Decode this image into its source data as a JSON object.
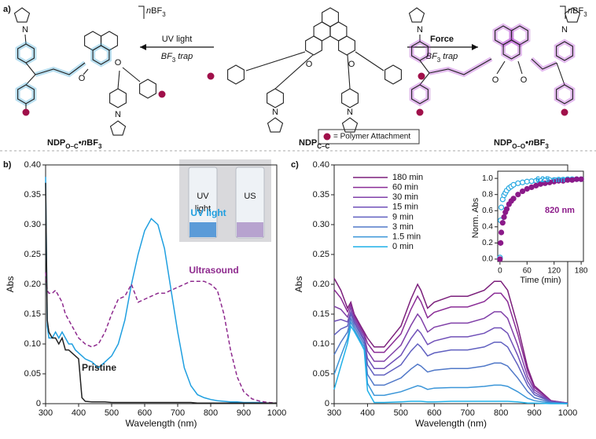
{
  "panel_a": {
    "label": "a)",
    "atoms": {
      "nitrogen": "N",
      "oxygen": "O"
    },
    "counterion": [
      {
        "text": "n",
        "style": "italic"
      },
      {
        "text": "BF"
      },
      {
        "text": "3",
        "style": "sub"
      }
    ],
    "left_arrow": {
      "top": "UV light",
      "bottom": [
        {
          "text": "BF",
          "style": "italic"
        },
        {
          "text": "3",
          "style": "sub"
        },
        {
          "text": " trap",
          "style": "italic"
        }
      ]
    },
    "right_arrow": {
      "top": "Force",
      "bottom": [
        {
          "text": "BF",
          "style": "italic"
        },
        {
          "text": "3",
          "style": "sub"
        },
        {
          "text": " trap",
          "style": "italic"
        }
      ]
    },
    "compounds": [
      [
        {
          "text": "NDP"
        },
        {
          "text": "O–C",
          "style": "sub"
        },
        {
          "text": "•"
        },
        {
          "text": "n",
          "style": "italic"
        },
        {
          "text": "BF"
        },
        {
          "text": "3",
          "style": "sub"
        }
      ],
      [
        {
          "text": "NDP"
        },
        {
          "text": "C–C",
          "style": "sub"
        }
      ],
      [
        {
          "text": "NDP"
        },
        {
          "text": "O–O",
          "style": "sub"
        },
        {
          "text": "•"
        },
        {
          "text": "n",
          "style": "italic"
        },
        {
          "text": "BF"
        },
        {
          "text": "3",
          "style": "sub"
        }
      ]
    ],
    "key": "= Polymer Attachment"
  },
  "photo_labels": {
    "left": [
      "UV",
      "light"
    ],
    "right": "US"
  },
  "chart_data": [
    {
      "type": "line",
      "label": "b)",
      "xlabel": "Wavelength (nm)",
      "ylabel": "Abs",
      "x": [
        300,
        305,
        310,
        320,
        330,
        340,
        350,
        360,
        370,
        380,
        390,
        400,
        410,
        420,
        440,
        460,
        480,
        500,
        520,
        540,
        560,
        580,
        600,
        620,
        640,
        660,
        680,
        700,
        720,
        740,
        760,
        780,
        800,
        820,
        840,
        860,
        880,
        900,
        925,
        950,
        975,
        1000
      ],
      "xlim": [
        300,
        1000
      ],
      "ylim": [
        0,
        0.4
      ],
      "xticks": [
        300,
        400,
        500,
        600,
        700,
        800,
        900,
        1000
      ],
      "yticks": [
        0,
        0.05,
        {
          "value": 0.1,
          "label": "0.10"
        },
        0.15,
        {
          "value": 0.2,
          "label": "0.20"
        },
        0.25,
        {
          "value": 0.3,
          "label": "0.30"
        },
        0.35,
        {
          "value": 0.4,
          "label": "0.40"
        }
      ],
      "legend": "inline",
      "series": [
        {
          "name": "UV light",
          "color": "#1f9fe0",
          "line_style": "solid",
          "values": [
            0.38,
            0.13,
            0.11,
            0.11,
            0.12,
            0.11,
            0.12,
            0.11,
            0.1,
            0.1,
            0.09,
            0.085,
            0.08,
            0.075,
            0.07,
            0.06,
            0.07,
            0.08,
            0.1,
            0.14,
            0.2,
            0.25,
            0.29,
            0.31,
            0.3,
            0.26,
            0.19,
            0.12,
            0.06,
            0.03,
            0.015,
            0.01,
            0.007,
            0.005,
            0.004,
            0.003,
            0.003,
            0.002,
            0.002,
            0.002,
            0.001,
            0.001
          ]
        },
        {
          "name": "Ultrasound",
          "color": "#8e2a8e",
          "line_style": "dashed",
          "values": [
            0.22,
            0.19,
            0.185,
            0.185,
            0.19,
            0.18,
            0.17,
            0.15,
            0.14,
            0.13,
            0.12,
            0.11,
            0.105,
            0.1,
            0.095,
            0.1,
            0.12,
            0.15,
            0.175,
            0.18,
            0.2,
            0.17,
            0.175,
            0.18,
            0.185,
            0.185,
            0.19,
            0.195,
            0.2,
            0.205,
            0.205,
            0.205,
            0.2,
            0.19,
            0.15,
            0.09,
            0.045,
            0.02,
            0.008,
            0.004,
            0.002,
            0.001
          ]
        },
        {
          "name": "Pristine",
          "color": "#222222",
          "line_style": "solid",
          "values": [
            0.37,
            0.14,
            0.12,
            0.11,
            0.11,
            0.1,
            0.11,
            0.09,
            0.09,
            0.085,
            0.08,
            0.075,
            0.01,
            0.004,
            0.003,
            0.003,
            0.003,
            0.002,
            0.002,
            0.002,
            0.002,
            0.002,
            0.002,
            0.002,
            0.002,
            0.002,
            0.002,
            0.002,
            0.002,
            0.002,
            0.001,
            0.001,
            0.001,
            0.001,
            0.001,
            0.001,
            0.001,
            0.001,
            0.001,
            0.001,
            0.001,
            0.001
          ]
        }
      ]
    },
    {
      "type": "line",
      "label": "c)",
      "xlabel": "Wavelength (nm)",
      "ylabel": "Abs",
      "x": [
        300,
        320,
        340,
        350,
        360,
        370,
        380,
        390,
        400,
        420,
        450,
        500,
        530,
        550,
        560,
        580,
        600,
        650,
        700,
        750,
        780,
        800,
        820,
        850,
        880,
        900,
        950,
        1000
      ],
      "xlim": [
        300,
        1000
      ],
      "ylim": [
        0,
        0.4
      ],
      "xticks": [
        300,
        400,
        500,
        600,
        700,
        800,
        900,
        1000
      ],
      "yticks": [
        0,
        0.05,
        {
          "value": 0.1,
          "label": "0.10"
        },
        0.15,
        {
          "value": 0.2,
          "label": "0.20"
        },
        0.25,
        {
          "value": 0.3,
          "label": "0.30"
        },
        0.35,
        {
          "value": 0.4,
          "label": "0.40"
        }
      ],
      "legend": "upper left",
      "series": [
        {
          "name": "180 min",
          "color": "#7b1f7b",
          "values": [
            0.21,
            0.19,
            0.16,
            0.17,
            0.15,
            0.14,
            0.13,
            0.12,
            0.11,
            0.095,
            0.095,
            0.13,
            0.175,
            0.2,
            0.19,
            0.16,
            0.17,
            0.18,
            0.18,
            0.19,
            0.205,
            0.205,
            0.19,
            0.13,
            0.06,
            0.03,
            0.005,
            0.001
          ]
        },
        {
          "name": "60 min",
          "color": "#8a2c96",
          "values": [
            0.191,
            0.177,
            0.154,
            0.166,
            0.147,
            0.137,
            0.127,
            0.117,
            0.101,
            0.086,
            0.086,
            0.117,
            0.158,
            0.18,
            0.171,
            0.144,
            0.153,
            0.162,
            0.162,
            0.171,
            0.185,
            0.185,
            0.171,
            0.117,
            0.054,
            0.027,
            0.005,
            0.001
          ]
        },
        {
          "name": "30 min",
          "color": "#8040a8",
          "values": [
            0.163,
            0.158,
            0.145,
            0.161,
            0.143,
            0.133,
            0.123,
            0.113,
            0.088,
            0.071,
            0.071,
            0.098,
            0.131,
            0.15,
            0.143,
            0.12,
            0.128,
            0.135,
            0.135,
            0.143,
            0.154,
            0.154,
            0.143,
            0.098,
            0.045,
            0.023,
            0.004,
            0.001
          ]
        },
        {
          "name": "15 min",
          "color": "#7050b8",
          "values": [
            0.138,
            0.141,
            0.137,
            0.154,
            0.139,
            0.129,
            0.119,
            0.108,
            0.076,
            0.059,
            0.059,
            0.081,
            0.109,
            0.124,
            0.118,
            0.099,
            0.105,
            0.112,
            0.112,
            0.118,
            0.127,
            0.127,
            0.118,
            0.081,
            0.037,
            0.019,
            0.003,
            0.001
          ]
        },
        {
          "name": "9 min",
          "color": "#6060c0",
          "values": [
            0.115,
            0.125,
            0.13,
            0.15,
            0.135,
            0.125,
            0.115,
            0.105,
            0.065,
            0.048,
            0.048,
            0.065,
            0.088,
            0.1,
            0.095,
            0.08,
            0.085,
            0.09,
            0.09,
            0.095,
            0.103,
            0.103,
            0.095,
            0.065,
            0.03,
            0.015,
            0.003,
            0.001
          ]
        },
        {
          "name": "3 min",
          "color": "#5078c8",
          "values": [
            0.082,
            0.103,
            0.12,
            0.143,
            0.13,
            0.12,
            0.11,
            0.1,
            0.049,
            0.031,
            0.031,
            0.043,
            0.058,
            0.066,
            0.063,
            0.053,
            0.056,
            0.059,
            0.059,
            0.063,
            0.068,
            0.068,
            0.063,
            0.043,
            0.02,
            0.01,
            0.002,
            0
          ]
        },
        {
          "name": "1.5 min",
          "color": "#3a95d8",
          "values": [
            0.049,
            0.08,
            0.109,
            0.137,
            0.125,
            0.115,
            0.105,
            0.095,
            0.034,
            0.014,
            0.014,
            0.02,
            0.026,
            0.03,
            0.029,
            0.024,
            0.026,
            0.027,
            0.027,
            0.029,
            0.031,
            0.031,
            0.029,
            0.02,
            0.009,
            0.005,
            0.001,
            0
          ]
        },
        {
          "name": "0 min",
          "color": "#1fb0e8",
          "values": [
            0.024,
            0.063,
            0.101,
            0.13,
            0.121,
            0.111,
            0.101,
            0.09,
            0.022,
            0.002,
            0.002,
            0.003,
            0.004,
            0.004,
            0.004,
            0.003,
            0.003,
            0.004,
            0.004,
            0.004,
            0.004,
            0.004,
            0.004,
            0.003,
            0.001,
            0.001,
            0,
            0
          ]
        }
      ]
    },
    {
      "type": "scatter",
      "xlabel": "Time (min)",
      "ylabel": "Norm. Abs",
      "x": [
        0,
        1.5,
        3,
        6,
        9,
        12,
        15,
        20,
        25,
        30,
        40,
        50,
        60,
        70,
        80,
        90,
        100,
        110,
        120,
        130,
        140,
        150,
        160,
        170,
        180
      ],
      "xlim": [
        -5,
        185
      ],
      "ylim": [
        -0.03,
        1.05
      ],
      "xticks": [
        0,
        60,
        120,
        180
      ],
      "yticks": [
        {
          "value": 0,
          "label": "0.0"
        },
        0.2,
        0.4,
        0.6,
        0.8,
        {
          "value": 1,
          "label": "1.0"
        }
      ],
      "legend": "inline",
      "series": [
        {
          "name": "625 nm",
          "color": "#29a9e1",
          "marker": "open",
          "values": [
            0.02,
            0.48,
            0.64,
            0.74,
            0.79,
            0.82,
            0.85,
            0.88,
            0.9,
            0.92,
            0.94,
            0.95,
            0.96,
            0.965,
            0.97,
            0.97,
            0.975,
            0.98,
            0.98,
            0.985,
            0.985,
            0.99,
            0.99,
            0.99,
            0.99
          ]
        },
        {
          "name": "820 nm",
          "color": "#8b1a89",
          "marker": "filled",
          "values": [
            0,
            0.2,
            0.33,
            0.45,
            0.52,
            0.58,
            0.62,
            0.68,
            0.72,
            0.75,
            0.8,
            0.84,
            0.87,
            0.89,
            0.91,
            0.93,
            0.94,
            0.95,
            0.96,
            0.97,
            0.97,
            0.98,
            0.98,
            0.99,
            0.99
          ]
        }
      ]
    }
  ]
}
